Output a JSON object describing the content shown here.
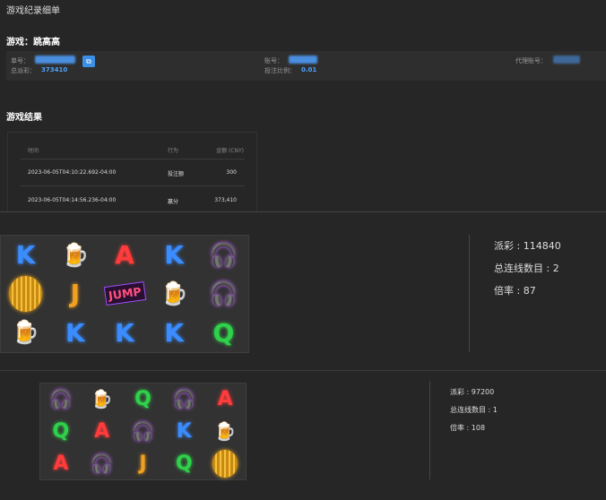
{
  "title": "游戏纪录细单",
  "game_label": "游戏：跳高高",
  "info": {
    "order_label": "单号：",
    "account_label": "账号：",
    "agent_label": "代理账号：",
    "total_payout_label": "总派彩：",
    "total_payout": "373410",
    "bet_ratio_label": "投注比例：",
    "bet_ratio": "0.01"
  },
  "results_title": "游戏结果",
  "table": {
    "headers": [
      "时间",
      "行为",
      "金额 (CNY)"
    ],
    "rows": [
      {
        "time": "2023-06-05T04:10:22.692-04:00",
        "action": "投注额",
        "amount": "300"
      },
      {
        "time": "2023-06-05T04:14:56.236-04:00",
        "action": "赢分",
        "amount": "373,410"
      }
    ]
  },
  "spins": [
    {
      "symbols": [
        "K",
        "beer",
        "A",
        "K",
        "headphones",
        "disco",
        "J",
        "wild",
        "beer",
        "headphones",
        "beer",
        "K",
        "K",
        "K",
        "Q"
      ],
      "payout": "派彩 : 114840",
      "lines": "总连线数目 : 2",
      "rate": "倍率 : 87"
    },
    {
      "symbols": [
        "headphones",
        "beer",
        "Q",
        "headphones",
        "A",
        "Q",
        "A",
        "headphones",
        "K",
        "beer",
        "A",
        "headphones",
        "J",
        "Q",
        "disco"
      ],
      "payout": "派彩 : 97200",
      "lines": "总连线数目 : 1",
      "rate": "倍率 : 108"
    }
  ],
  "wild_text": "JUMP",
  "colors": {
    "K": "#3a8cff",
    "A": "#ff3b3b",
    "Q": "#2fd14a",
    "J": "#f0a020",
    "accent": "#4ea3ff"
  }
}
